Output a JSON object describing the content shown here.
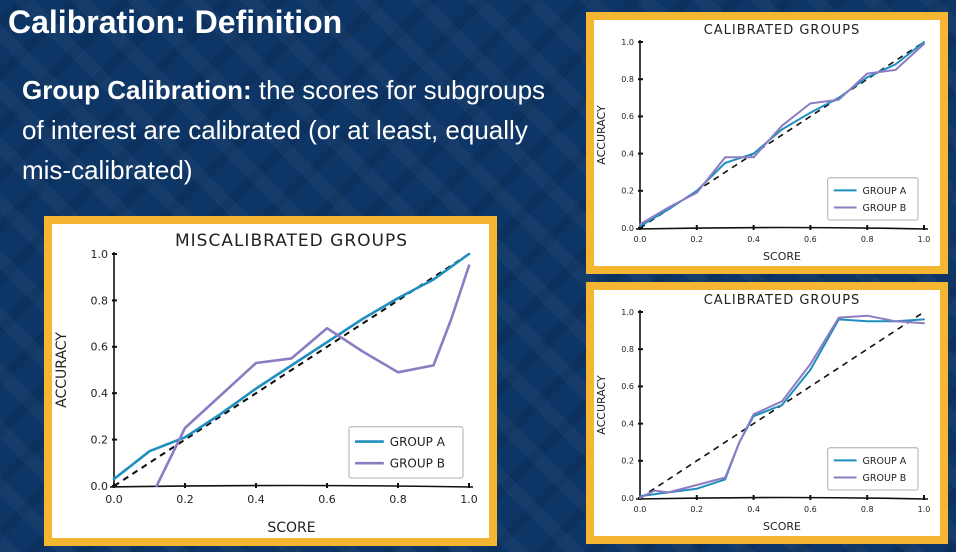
{
  "slide": {
    "title": "Calibration: Definition",
    "subtitle_bold": "Group Calibration:",
    "subtitle_rest": " the scores for subgroups of interest are calibrated (or at least, equally mis-calibrated)"
  },
  "colors": {
    "background": "#0d3566",
    "panel_border": "#f5b731",
    "group_a": "#1f8fbf",
    "group_b": "#8e7cc3",
    "diagonal": "#111111"
  },
  "chart_data": [
    {
      "type": "line",
      "title": "MISCALIBRATED GROUPS",
      "xlabel": "SCORE",
      "ylabel": "ACCURACY",
      "xlim": [
        0,
        1
      ],
      "ylim": [
        0,
        1
      ],
      "xticks": [
        "0.0",
        "0.2",
        "0.4",
        "0.6",
        "0.8",
        "1.0"
      ],
      "yticks": [
        "0.0",
        "0.2",
        "0.4",
        "0.6",
        "0.8",
        "1.0"
      ],
      "legend": "bottom-right",
      "series": [
        {
          "name": "GROUP A",
          "color": "#1f8fbf",
          "x": [
            0.0,
            0.05,
            0.1,
            0.2,
            0.3,
            0.4,
            0.5,
            0.6,
            0.7,
            0.8,
            0.9,
            1.0
          ],
          "y": [
            0.03,
            0.09,
            0.15,
            0.21,
            0.31,
            0.42,
            0.52,
            0.62,
            0.72,
            0.81,
            0.89,
            1.0
          ]
        },
        {
          "name": "GROUP B",
          "color": "#8e7cc3",
          "x": [
            0.12,
            0.2,
            0.3,
            0.4,
            0.5,
            0.6,
            0.7,
            0.8,
            0.9,
            0.95,
            1.0
          ],
          "y": [
            0.0,
            0.25,
            0.39,
            0.53,
            0.55,
            0.68,
            0.58,
            0.49,
            0.52,
            0.72,
            0.95
          ]
        }
      ]
    },
    {
      "type": "line",
      "title": "CALIBRATED GROUPS",
      "xlabel": "SCORE",
      "ylabel": "ACCURACY",
      "xlim": [
        0,
        1
      ],
      "ylim": [
        0,
        1
      ],
      "xticks": [
        "0.0",
        "0.2",
        "0.4",
        "0.6",
        "0.8",
        "1.0"
      ],
      "yticks": [
        "0.0",
        "0.2",
        "0.4",
        "0.6",
        "0.8",
        "1.0"
      ],
      "legend": "bottom-right",
      "series": [
        {
          "name": "GROUP A",
          "color": "#1f8fbf",
          "x": [
            0.0,
            0.1,
            0.2,
            0.3,
            0.4,
            0.5,
            0.6,
            0.7,
            0.8,
            0.9,
            1.0
          ],
          "y": [
            0.01,
            0.1,
            0.2,
            0.35,
            0.4,
            0.53,
            0.62,
            0.7,
            0.81,
            0.88,
            1.0
          ]
        },
        {
          "name": "GROUP B",
          "color": "#8e7cc3",
          "x": [
            0.0,
            0.1,
            0.2,
            0.3,
            0.4,
            0.5,
            0.6,
            0.7,
            0.8,
            0.9,
            1.0
          ],
          "y": [
            0.02,
            0.11,
            0.19,
            0.38,
            0.38,
            0.55,
            0.67,
            0.69,
            0.83,
            0.85,
            0.99
          ]
        }
      ]
    },
    {
      "type": "line",
      "title": "CALIBRATED GROUPS",
      "xlabel": "SCORE",
      "ylabel": "ACCURACY",
      "xlim": [
        0,
        1
      ],
      "ylim": [
        0,
        1
      ],
      "xticks": [
        "0.0",
        "0.2",
        "0.4",
        "0.6",
        "0.8",
        "1.0"
      ],
      "yticks": [
        "0.0",
        "0.2",
        "0.4",
        "0.6",
        "0.8",
        "1.0"
      ],
      "legend": "bottom-right",
      "series": [
        {
          "name": "GROUP A",
          "color": "#1f8fbf",
          "x": [
            0.0,
            0.1,
            0.2,
            0.3,
            0.35,
            0.4,
            0.5,
            0.6,
            0.7,
            0.8,
            0.9,
            1.0
          ],
          "y": [
            0.01,
            0.03,
            0.05,
            0.1,
            0.3,
            0.44,
            0.5,
            0.69,
            0.96,
            0.95,
            0.95,
            0.96
          ]
        },
        {
          "name": "GROUP B",
          "color": "#8e7cc3",
          "x": [
            0.0,
            0.05,
            0.1,
            0.2,
            0.3,
            0.35,
            0.4,
            0.5,
            0.6,
            0.7,
            0.8,
            0.9,
            1.0
          ],
          "y": [
            0.0,
            0.04,
            0.03,
            0.07,
            0.11,
            0.3,
            0.45,
            0.52,
            0.72,
            0.97,
            0.98,
            0.95,
            0.94
          ]
        }
      ]
    }
  ]
}
